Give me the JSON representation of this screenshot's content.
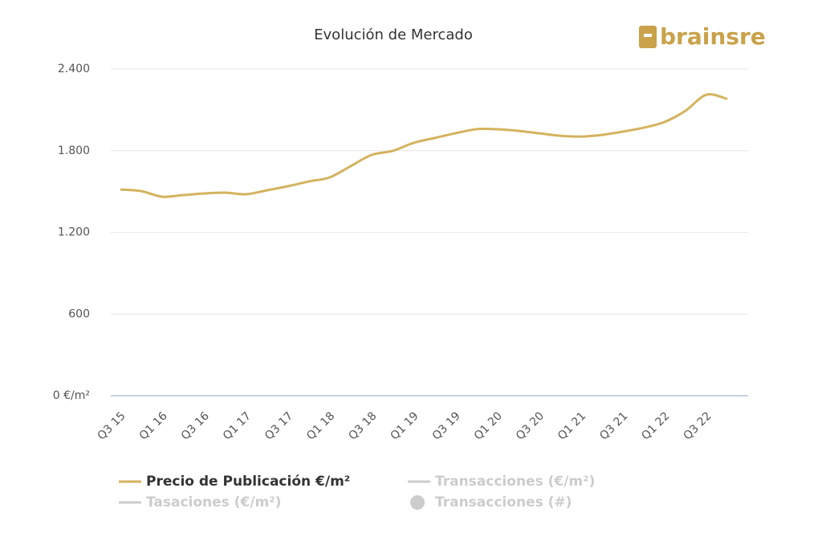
{
  "logo": "brainsre",
  "chart_data": {
    "type": "line",
    "title": "Evolución de Mercado",
    "categories": [
      "Q3 15",
      null,
      "Q1 16",
      null,
      "Q3 16",
      null,
      "Q1 17",
      null,
      "Q3 17",
      null,
      "Q1 18",
      null,
      "Q3 18",
      null,
      "Q1 19",
      null,
      "Q3 19",
      null,
      "Q1 20",
      null,
      "Q3 20",
      null,
      "Q1 21",
      null,
      "Q3 21",
      null,
      "Q1 22",
      null,
      "Q3 22",
      null
    ],
    "series": [
      {
        "name": "Precio de Publicación €/m²",
        "color": "#d4b35e",
        "values": [
          1515,
          1503,
          1462,
          1474,
          1486,
          1492,
          1480,
          1509,
          1539,
          1574,
          1604,
          1686,
          1769,
          1798,
          1857,
          1893,
          1928,
          1958,
          1958,
          1946,
          1928,
          1910,
          1904,
          1916,
          1940,
          1969,
          2011,
          2093,
          2211,
          2180
        ]
      }
    ],
    "hidden_series": [
      {
        "name": "Transacciones (€/m²)",
        "marker": "line"
      },
      {
        "name": "Tasaciones (€/m²)",
        "marker": "line"
      },
      {
        "name": "Transacciones (#)",
        "marker": "circle"
      }
    ],
    "ylim": [
      0,
      2400
    ],
    "yticks": [
      {
        "value": 0,
        "label": "0 €/m²"
      },
      600,
      {
        "value": 1200,
        "label": "1.200"
      },
      {
        "value": 1800,
        "label": "1.800"
      },
      {
        "value": 2400,
        "label": "2.400"
      }
    ],
    "grid": true
  }
}
